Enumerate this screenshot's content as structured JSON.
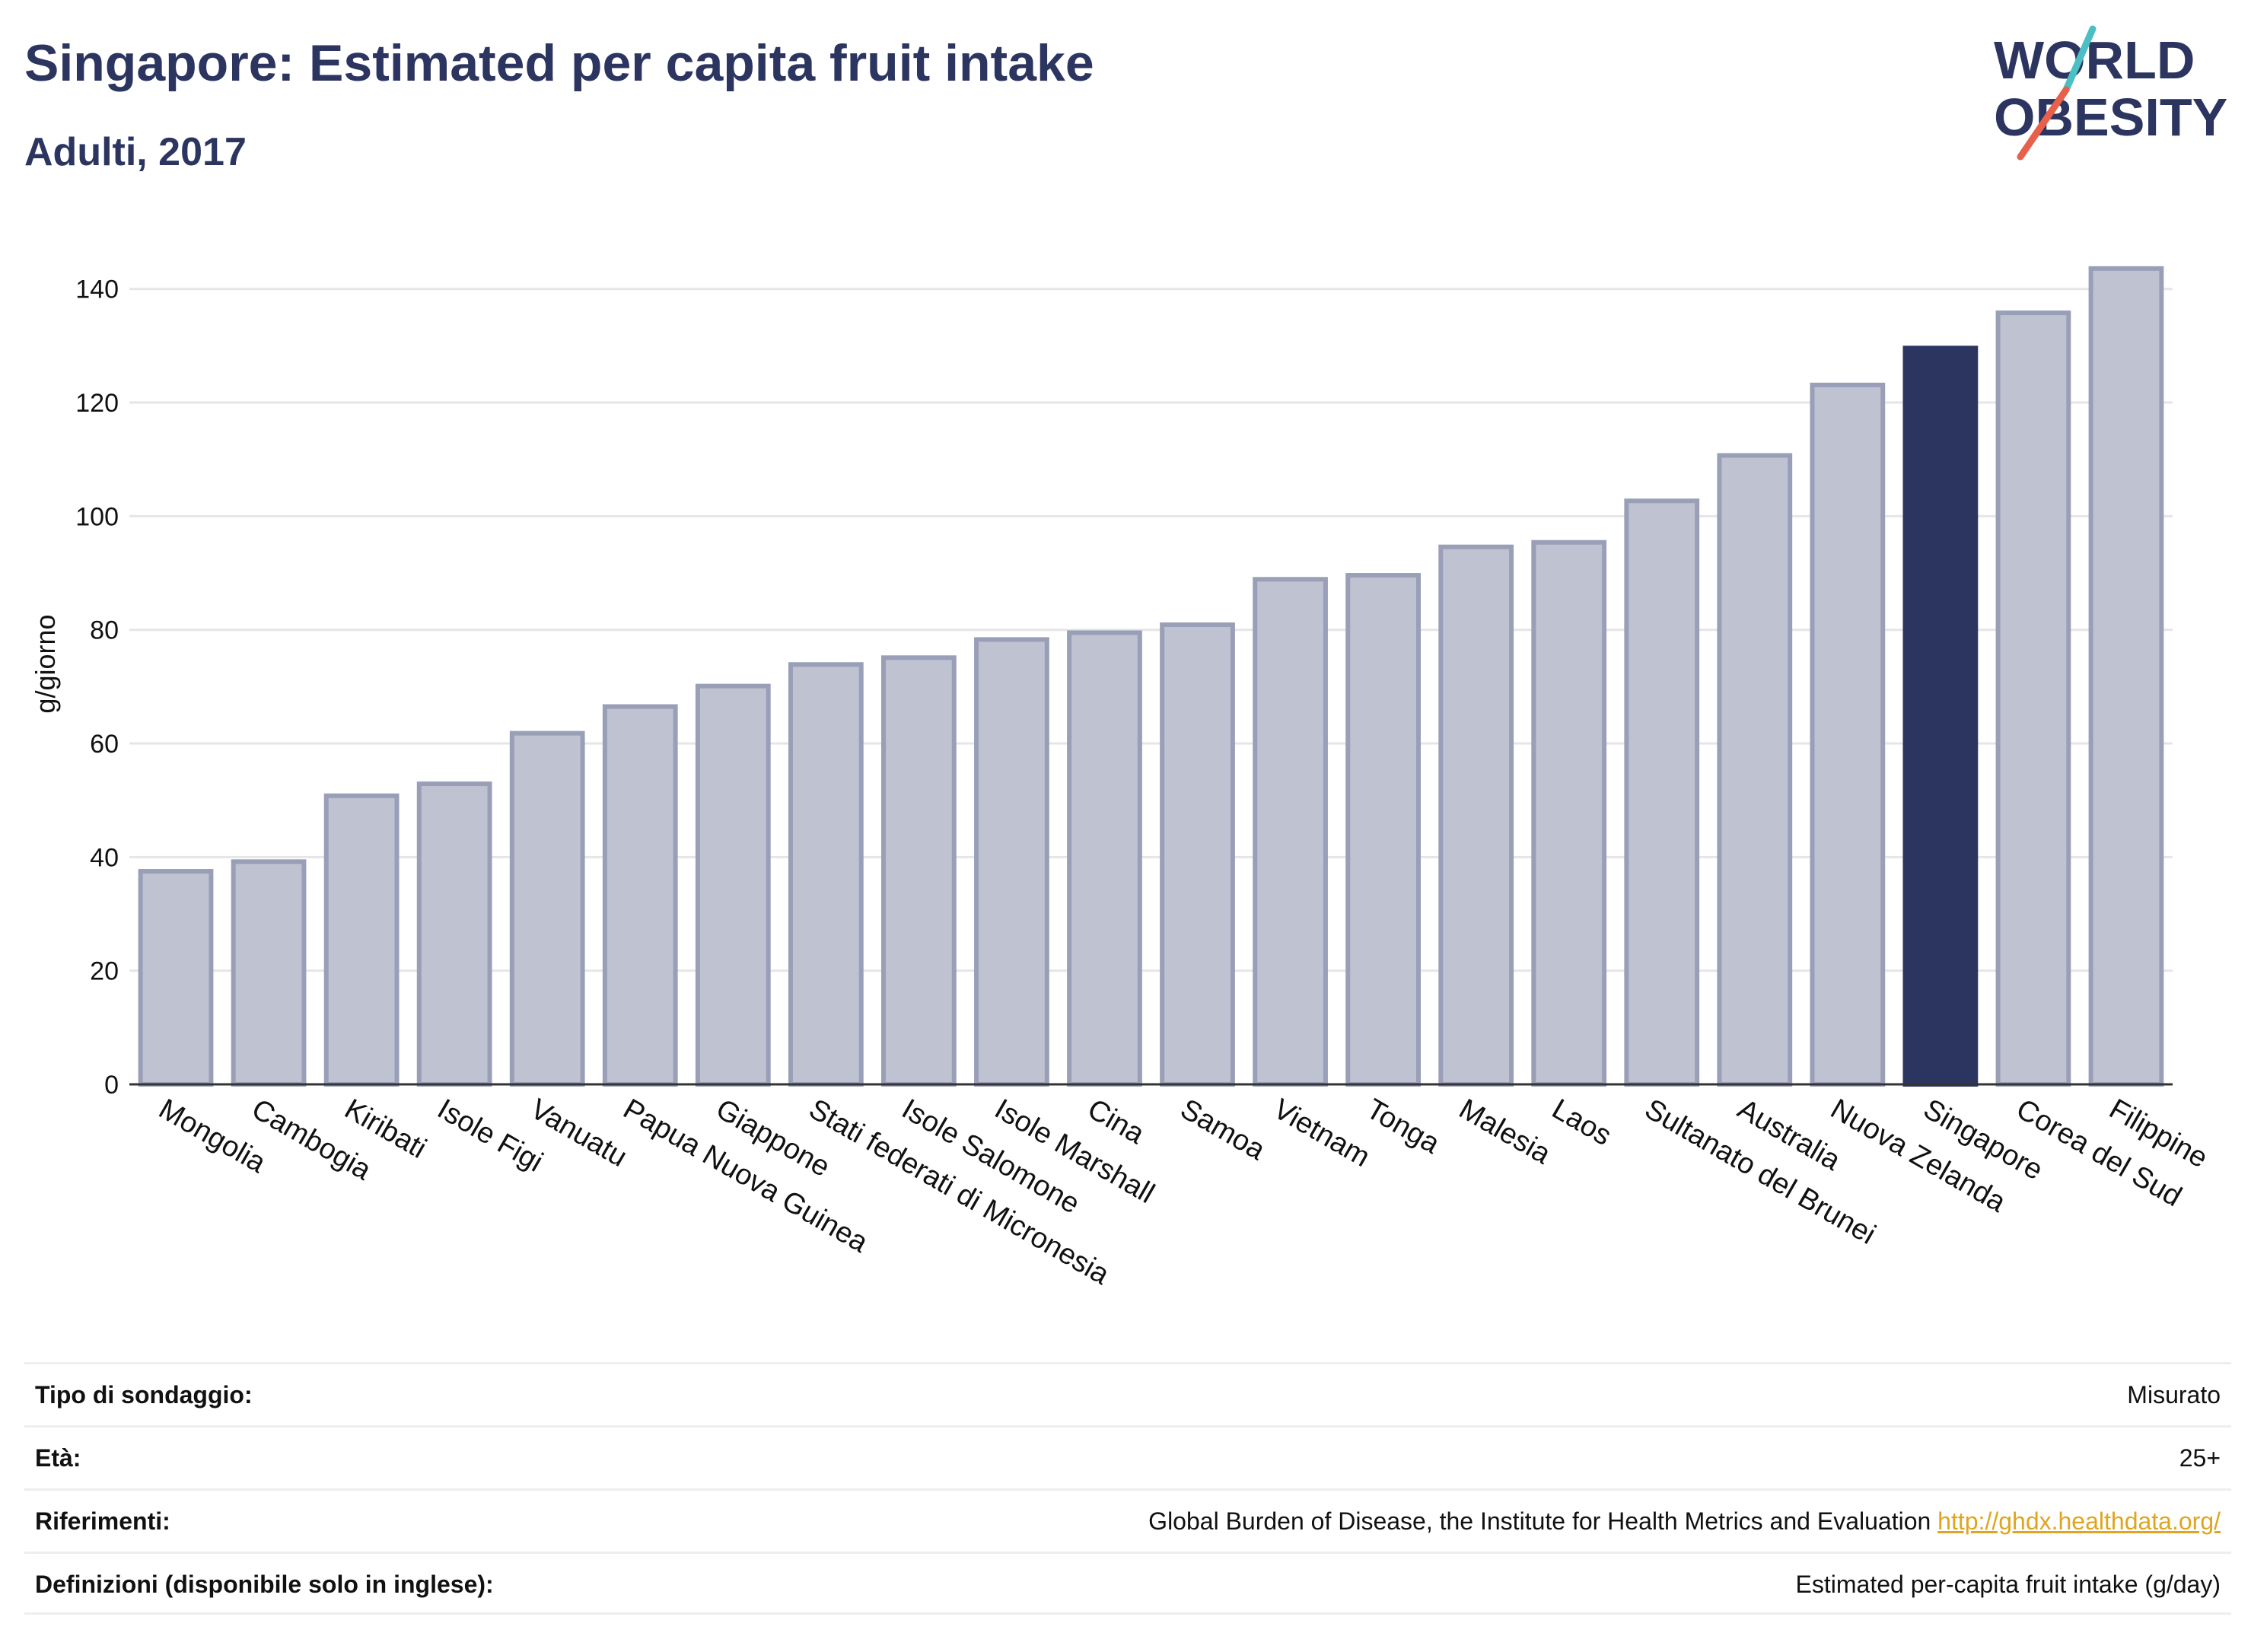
{
  "title": "Singapore: Estimated per capita fruit intake",
  "subtitle": "Adulti, 2017",
  "logo": {
    "line1": "WORLD",
    "line2": "OBESITY",
    "accent_colors": [
      "#4bbfc4",
      "#e8604c"
    ]
  },
  "colors": {
    "highlight": "#2b3560",
    "default_bar": "#bfc2d0",
    "bar_border": "#9a9fb8",
    "grid": "#e6e6e6",
    "text": "#2b3560",
    "link": "#e0a520"
  },
  "chart_data": {
    "type": "bar",
    "ylabel": "g/giorno",
    "xlabel": "",
    "ylim": [
      0,
      148
    ],
    "yticks": [
      0,
      20,
      40,
      60,
      80,
      100,
      120,
      140
    ],
    "grid": true,
    "highlight": "Singapore",
    "categories": [
      "Mongolia",
      "Cambogia",
      "Kiribati",
      "Isole Figi",
      "Vanuatu",
      "Papua Nuova Guinea",
      "Giappone",
      "Stati federati di Micronesia",
      "Isole Salomone",
      "Isole Marshall",
      "Cina",
      "Samoa",
      "Vietnam",
      "Tonga",
      "Malesia",
      "Laos",
      "Sultanato del Brunei",
      "Australia",
      "Nuova Zelanda",
      "Singapore",
      "Corea del Sud",
      "Filippine"
    ],
    "values": [
      37.5,
      39.2,
      50.8,
      52.9,
      61.8,
      66.5,
      70.1,
      73.9,
      75.1,
      78.3,
      79.5,
      80.9,
      88.9,
      89.6,
      94.6,
      95.4,
      102.7,
      110.7,
      123.1,
      129.6,
      135.8,
      143.6
    ]
  },
  "info": [
    {
      "label": "Tipo di sondaggio:",
      "value": "Misurato"
    },
    {
      "label": "Età:",
      "value": "25+"
    },
    {
      "label": "Riferimenti:",
      "value": "Global Burden of Disease, the Institute for Health Metrics and Evaluation",
      "link": "http://ghdx.healthdata.org/"
    },
    {
      "label": "Definizioni (disponibile solo in inglese):",
      "value": "Estimated per-capita fruit intake (g/day)"
    }
  ]
}
